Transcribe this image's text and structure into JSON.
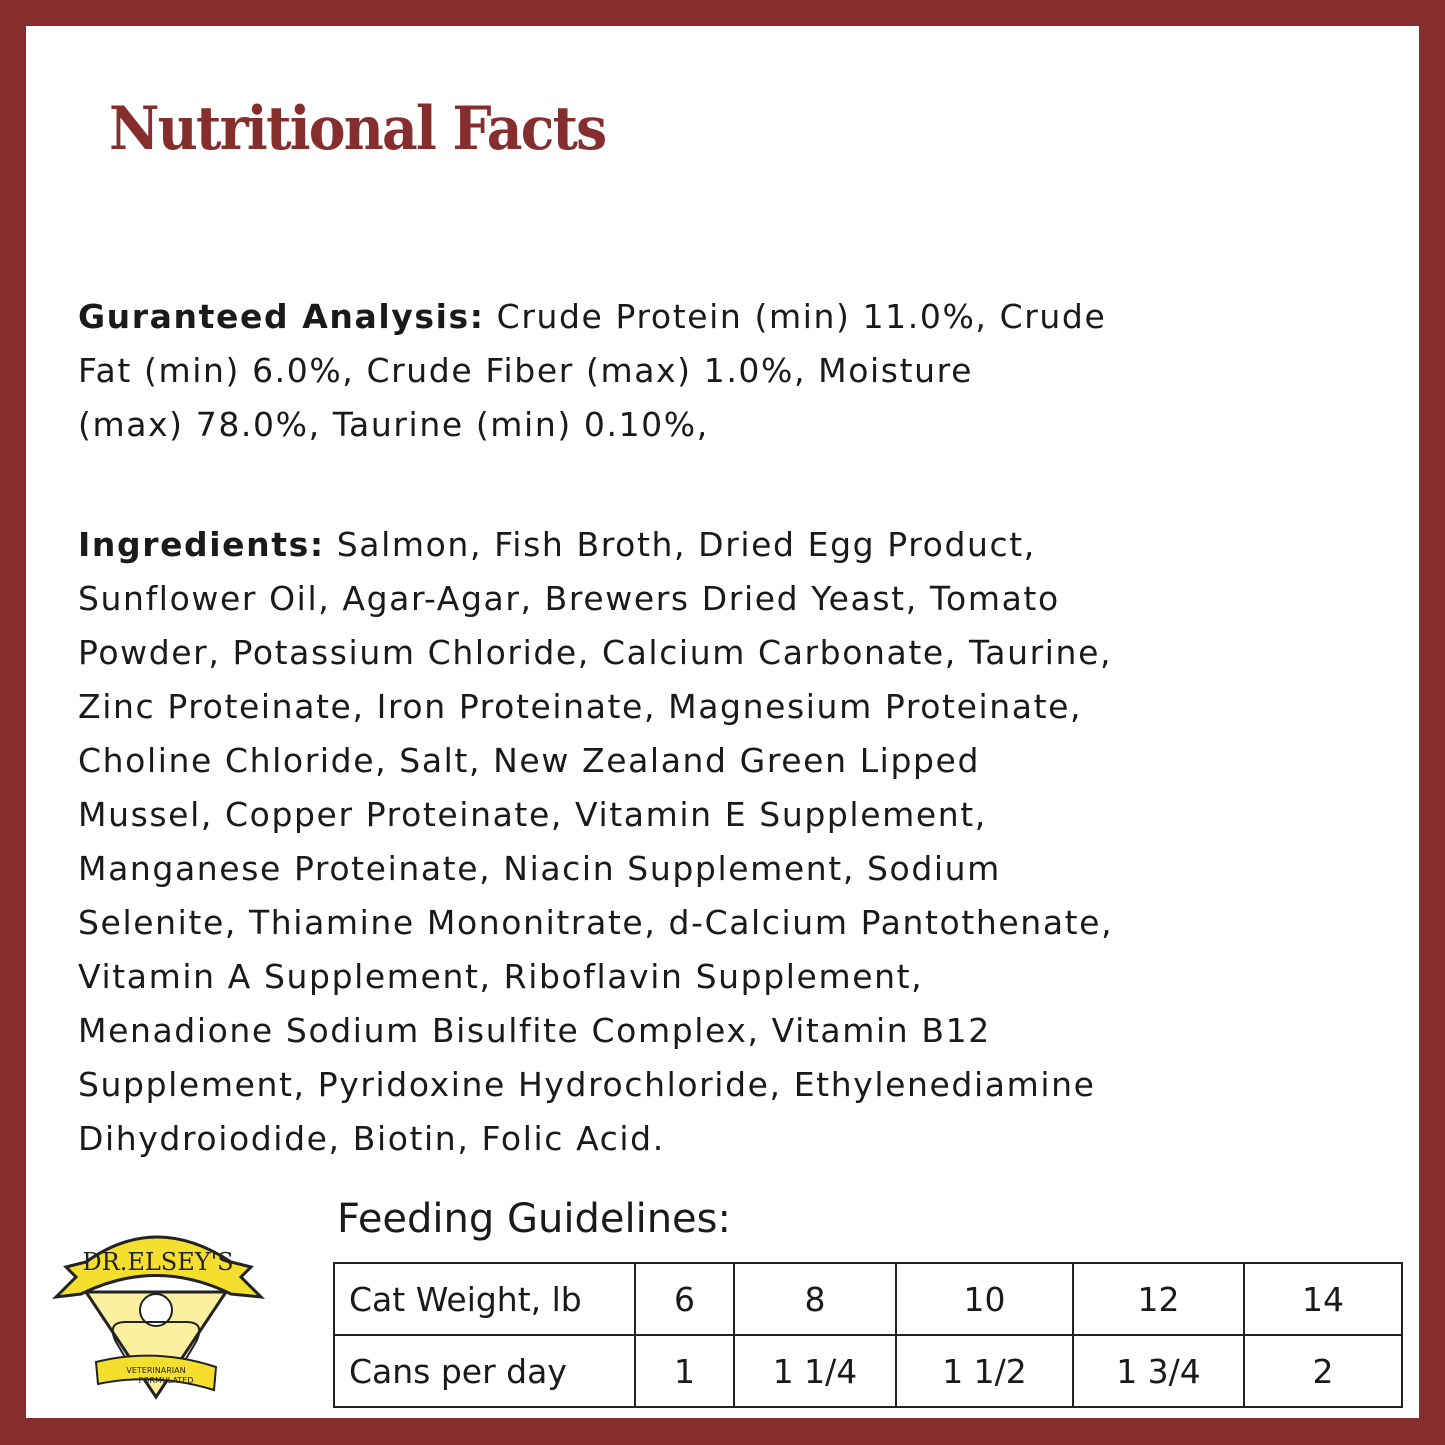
{
  "title": "Nutritional Facts",
  "analysis": {
    "label": "Guranteed Analysis:",
    "lines": [
      " Crude Protein (min) 11.0%, Crude",
      "Fat (min) 6.0%, Crude Fiber (max) 1.0%, Moisture",
      "(max) 78.0%, Taurine (min) 0.10%,"
    ]
  },
  "ingredients": {
    "label": "Ingredients:",
    "lines": [
      " Salmon, Fish Broth, Dried Egg Product,",
      "Sunflower Oil, Agar-Agar, Brewers Dried Yeast, Tomato",
      "Powder, Potassium Chloride, Calcium Carbonate, Taurine,",
      "Zinc Proteinate, Iron Proteinate, Magnesium Proteinate,",
      "Choline Chloride, Salt, New Zealand Green Lipped",
      "Mussel, Copper Proteinate, Vitamin E Supplement,",
      "Manganese Proteinate, Niacin Supplement, Sodium",
      "Selenite, Thiamine Mononitrate, d-Calcium Pantothenate,",
      "Vitamin A Supplement, Riboflavin Supplement,",
      "Menadione Sodium Bisulfite Complex, Vitamin B12",
      "Supplement, Pyridoxine Hydrochloride, Ethylenediamine",
      "Dihydroiodide, Biotin, Folic Acid."
    ]
  },
  "feeding": {
    "title": "Feeding Guidelines:",
    "rows": [
      {
        "header": "Cat Weight, lb",
        "values": [
          "6",
          "8",
          "10",
          "12",
          "14"
        ]
      },
      {
        "header": "Cans per day",
        "values": [
          "1",
          "1 1/4",
          "1 1/2",
          "1 3/4",
          "2"
        ]
      }
    ]
  },
  "logo": {
    "brand": "DR.ELSEY'S",
    "tagline": "VETERINARIAN FORMULATED"
  },
  "colors": {
    "border": "#862d2d",
    "logo_yellow": "#f5df2e"
  }
}
